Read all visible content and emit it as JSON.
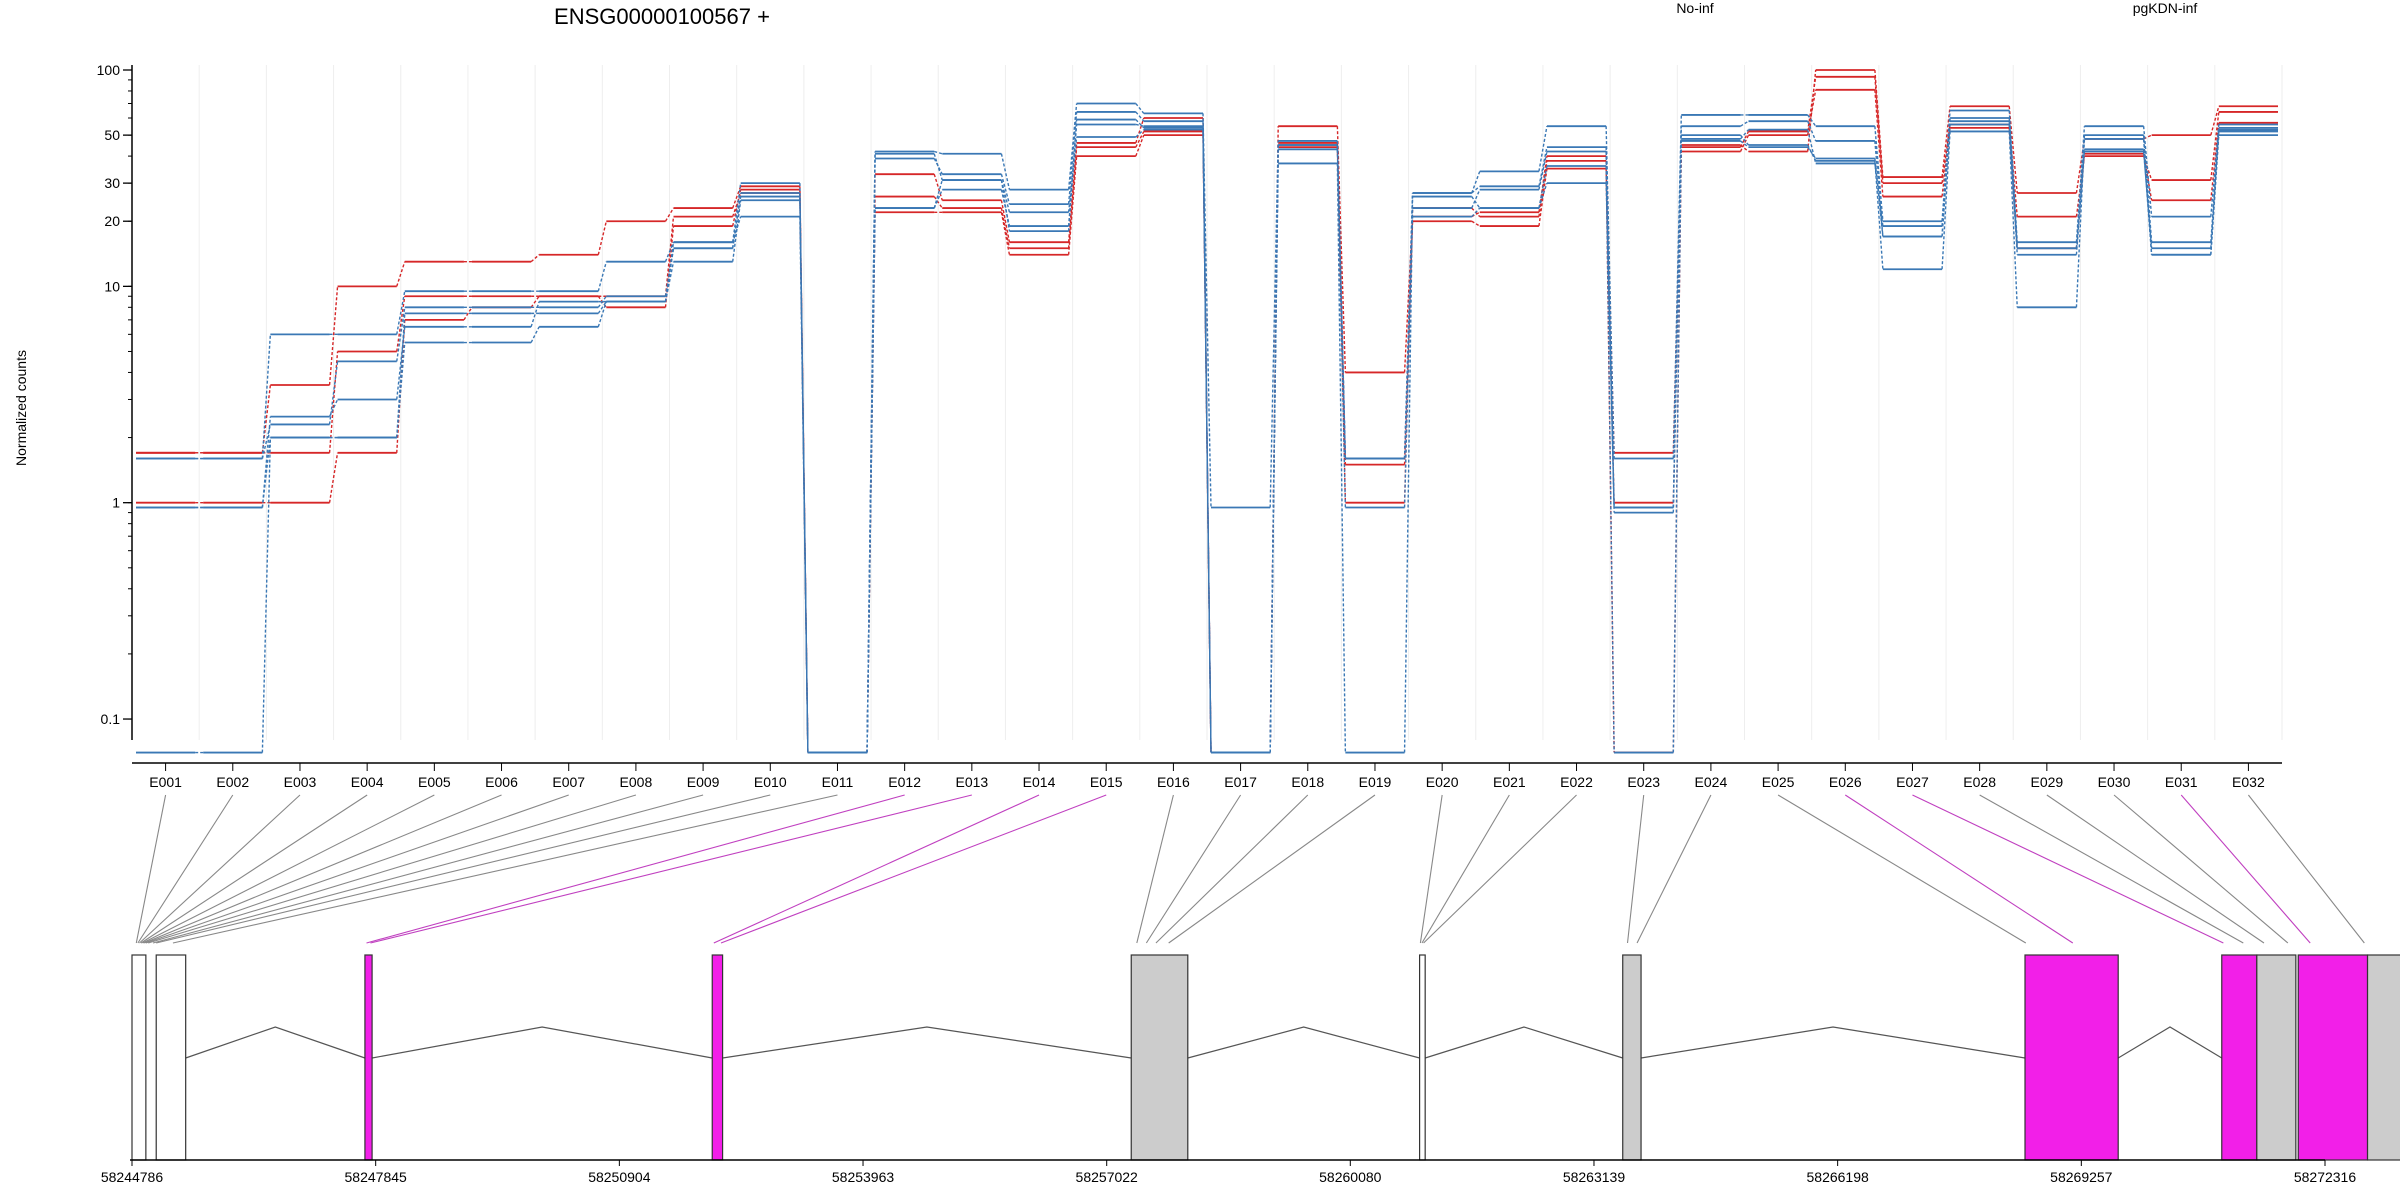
{
  "title": "ENSG00000100567 +",
  "ylabel": "Normalized counts",
  "legend": [
    {
      "label": "No-inf",
      "color": "#d62728"
    },
    {
      "label": "pgKDN-inf",
      "color": "#3a78b5"
    }
  ],
  "chart_data": {
    "type": "line",
    "title": "ENSG00000100567 +",
    "xlabel": "",
    "ylabel": "Normalized counts",
    "y_scale": "log",
    "ylim": [
      0.08,
      100
    ],
    "y_ticks": [
      {
        "value": 0.1,
        "label": "0.1"
      },
      {
        "value": 1,
        "label": "1"
      },
      {
        "value": 10,
        "label": "10"
      },
      {
        "value": 20,
        "label": "20"
      },
      {
        "value": 30,
        "label": "30"
      },
      {
        "value": 50,
        "label": "50"
      },
      {
        "value": 100,
        "label": "100"
      }
    ],
    "grid": "vertical",
    "legend_position": "top",
    "categories": [
      "E001",
      "E002",
      "E003",
      "E004",
      "E005",
      "E006",
      "E007",
      "E008",
      "E009",
      "E010",
      "E011",
      "E012",
      "E013",
      "E014",
      "E015",
      "E016",
      "E017",
      "E018",
      "E019",
      "E020",
      "E021",
      "E022",
      "E023",
      "E024",
      "E025",
      "E026",
      "E027",
      "E028",
      "E029",
      "E030",
      "E031",
      "E032"
    ],
    "series": [
      {
        "group": "No-inf",
        "color": "#d62728",
        "values": [
          1.7,
          1.7,
          3.5,
          10,
          13,
          13,
          14,
          20,
          23,
          29,
          0.07,
          33,
          25,
          16,
          46,
          60,
          0.07,
          55,
          4,
          21,
          22,
          40,
          1.7,
          45,
          42,
          100,
          32,
          68,
          27,
          48,
          50,
          68
        ]
      },
      {
        "group": "No-inf",
        "color": "#d62728",
        "values": [
          1.0,
          1.0,
          1.0,
          1.7,
          7.0,
          8.0,
          9.0,
          8.0,
          19,
          28,
          0.07,
          26,
          23,
          15,
          44,
          52,
          0.07,
          46,
          1.0,
          23,
          21,
          38,
          0.07,
          44,
          52,
          93,
          30,
          56,
          21,
          40,
          31,
          64
        ]
      },
      {
        "group": "No-inf",
        "color": "#d62728",
        "values": [
          1.7,
          1.7,
          1.7,
          5.0,
          9.0,
          9.0,
          9.0,
          9.0,
          21,
          27,
          0.07,
          22,
          22,
          14,
          40,
          50,
          0.07,
          44,
          1.5,
          20,
          19,
          35,
          1.0,
          42,
          50,
          81,
          26,
          54,
          15,
          41,
          25,
          57
        ]
      },
      {
        "group": "pgKDN-inf",
        "color": "#3a78b5",
        "values": [
          1.6,
          1.6,
          6.0,
          6.0,
          9.5,
          9.5,
          9.5,
          13,
          16,
          30,
          0.07,
          42,
          41,
          28,
          70,
          63,
          0.95,
          47,
          1.6,
          27,
          34,
          55,
          1.6,
          62,
          62,
          55,
          20,
          65,
          16,
          55,
          21,
          56
        ]
      },
      {
        "group": "pgKDN-inf",
        "color": "#3a78b5",
        "values": [
          1.6,
          1.6,
          2.3,
          4.5,
          8.0,
          8.0,
          8.0,
          9.0,
          15,
          27,
          0.07,
          39,
          33,
          24,
          64,
          58,
          0.07,
          45,
          1.6,
          27,
          29,
          44,
          0.95,
          55,
          58,
          47,
          17,
          60,
          15,
          50,
          16,
          53
        ]
      },
      {
        "group": "pgKDN-inf",
        "color": "#3a78b5",
        "values": [
          0.95,
          0.95,
          2.0,
          2.0,
          5.5,
          5.5,
          6.5,
          8.5,
          13,
          25,
          0.07,
          23,
          28,
          19,
          56,
          55,
          0.07,
          37,
          0.07,
          26,
          23,
          30,
          0.95,
          50,
          45,
          38,
          12,
          52,
          8,
          48,
          14,
          50
        ]
      },
      {
        "group": "pgKDN-inf",
        "color": "#3a78b5",
        "values": [
          0.07,
          0.07,
          2.0,
          2.0,
          7.5,
          7.5,
          7.5,
          8.5,
          16,
          21,
          0.07,
          23,
          31,
          18,
          59,
          54,
          0.07,
          45,
          1.6,
          21,
          23,
          36,
          0.9,
          48,
          53,
          37,
          19,
          56,
          14,
          43,
          14,
          52
        ]
      },
      {
        "group": "pgKDN-inf",
        "color": "#3a78b5",
        "values": [
          0.95,
          0.95,
          2.5,
          3.0,
          6.5,
          6.5,
          8.5,
          8.5,
          15,
          26,
          0.07,
          41,
          31,
          22,
          49,
          53,
          0.07,
          43,
          0.95,
          23,
          28,
          42,
          0.07,
          47,
          44,
          39,
          17,
          58,
          15,
          42,
          15,
          54
        ]
      }
    ],
    "gene_model": {
      "x_ticks": [
        {
          "value": 58244786,
          "label": "58244786"
        },
        {
          "value": 58247845,
          "label": "58247845"
        },
        {
          "value": 58250904,
          "label": "58250904"
        },
        {
          "value": 58253963,
          "label": "58253963"
        },
        {
          "value": 58257022,
          "label": "58257022"
        },
        {
          "value": 58260080,
          "label": "58260080"
        },
        {
          "value": 58263139,
          "label": "58263139"
        },
        {
          "value": 58266198,
          "label": "58266198"
        },
        {
          "value": 58269257,
          "label": "58269257"
        },
        {
          "value": 58272316,
          "label": "58272316"
        }
      ],
      "xlim": [
        58244786,
        58272316
      ],
      "exons": [
        {
          "start": 58244786,
          "end": 58244960,
          "fill": "#ffffff"
        },
        {
          "start": 58245090,
          "end": 58245460,
          "fill": "#ffffff"
        },
        {
          "start": 58247710,
          "end": 58247800,
          "fill": "#f21fe8"
        },
        {
          "start": 58252070,
          "end": 58252200,
          "fill": "#f21fe8"
        },
        {
          "start": 58257330,
          "end": 58258040,
          "fill": "#cccccc"
        },
        {
          "start": 58260950,
          "end": 58261020,
          "fill": "#ffffff"
        },
        {
          "start": 58263500,
          "end": 58263730,
          "fill": "#cccccc"
        },
        {
          "start": 58268550,
          "end": 58269720,
          "fill": "#f21fe8"
        },
        {
          "start": 58271020,
          "end": 58271460,
          "fill": "#f21fe8"
        },
        {
          "start": 58271460,
          "end": 58271950,
          "fill": "#cccccc"
        },
        {
          "start": 58271980,
          "end": 58272850,
          "fill": "#f21fe8"
        },
        {
          "start": 58272850,
          "end": 58273310,
          "fill": "#cccccc"
        }
      ],
      "introns": [
        [
          58245460,
          58247710
        ],
        [
          58247800,
          58252070
        ],
        [
          58252200,
          58257330
        ],
        [
          58258040,
          58260950
        ],
        [
          58261020,
          58263500
        ],
        [
          58263730,
          58268550
        ],
        [
          58269720,
          58271020
        ]
      ],
      "bin_links": [
        {
          "bin": "E001",
          "pos": 58244840,
          "color": "#888888"
        },
        {
          "bin": "E002",
          "pos": 58244860,
          "color": "#888888"
        },
        {
          "bin": "E003",
          "pos": 58244880,
          "color": "#888888"
        },
        {
          "bin": "E004",
          "pos": 58244900,
          "color": "#888888"
        },
        {
          "bin": "E005",
          "pos": 58244920,
          "color": "#888888"
        },
        {
          "bin": "E006",
          "pos": 58244940,
          "color": "#888888"
        },
        {
          "bin": "E007",
          "pos": 58244960,
          "color": "#888888"
        },
        {
          "bin": "E008",
          "pos": 58244990,
          "color": "#888888"
        },
        {
          "bin": "E009",
          "pos": 58245050,
          "color": "#888888"
        },
        {
          "bin": "E010",
          "pos": 58245090,
          "color": "#888888"
        },
        {
          "bin": "E011",
          "pos": 58245300,
          "color": "#888888"
        },
        {
          "bin": "E012",
          "pos": 58247730,
          "color": "#c040c0"
        },
        {
          "bin": "E013",
          "pos": 58247780,
          "color": "#c040c0"
        },
        {
          "bin": "E014",
          "pos": 58252090,
          "color": "#c040c0"
        },
        {
          "bin": "E015",
          "pos": 58252180,
          "color": "#c040c0"
        },
        {
          "bin": "E016",
          "pos": 58257400,
          "color": "#888888"
        },
        {
          "bin": "E017",
          "pos": 58257520,
          "color": "#888888"
        },
        {
          "bin": "E018",
          "pos": 58257640,
          "color": "#888888"
        },
        {
          "bin": "E019",
          "pos": 58257800,
          "color": "#888888"
        },
        {
          "bin": "E020",
          "pos": 58260960,
          "color": "#888888"
        },
        {
          "bin": "E021",
          "pos": 58260980,
          "color": "#888888"
        },
        {
          "bin": "E022",
          "pos": 58261000,
          "color": "#888888"
        },
        {
          "bin": "E023",
          "pos": 58263560,
          "color": "#888888"
        },
        {
          "bin": "E024",
          "pos": 58263680,
          "color": "#888888"
        },
        {
          "bin": "E025",
          "pos": 58268560,
          "color": "#888888"
        },
        {
          "bin": "E026",
          "pos": 58269150,
          "color": "#c040c0"
        },
        {
          "bin": "E027",
          "pos": 58271040,
          "color": "#c040c0"
        },
        {
          "bin": "E028",
          "pos": 58271290,
          "color": "#888888"
        },
        {
          "bin": "E029",
          "pos": 58271550,
          "color": "#888888"
        },
        {
          "bin": "E030",
          "pos": 58271850,
          "color": "#888888"
        },
        {
          "bin": "E031",
          "pos": 58272130,
          "color": "#c040c0"
        },
        {
          "bin": "E032",
          "pos": 58272810,
          "color": "#888888"
        }
      ]
    }
  }
}
